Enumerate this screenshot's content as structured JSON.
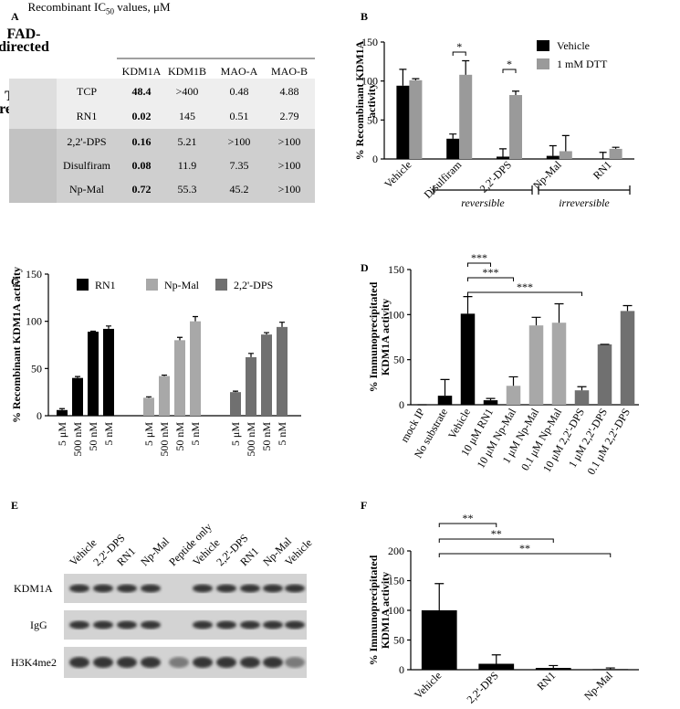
{
  "panel_labels": [
    "A",
    "B",
    "C",
    "D",
    "E",
    "F"
  ],
  "table": {
    "title": {
      "text": "Recombinant IC",
      "subscript": "50",
      "tail": " values, μM"
    },
    "columns": [
      "KDM1A",
      "KDM1B",
      "MAO-A",
      "MAO-B"
    ],
    "groups": [
      {
        "label": "FAD-directed",
        "rows": [
          {
            "name": "TCP",
            "values": [
              48.4,
              ">400",
              0.48,
              4.88
            ]
          },
          {
            "name": "RN1",
            "values": [
              0.02,
              145,
              0.51,
              2.79
            ]
          }
        ]
      },
      {
        "label": "Thiol-reactive",
        "rows": [
          {
            "name": "2,2'-DPS",
            "values": [
              0.16,
              5.21,
              ">100",
              ">100"
            ]
          },
          {
            "name": "Disulfiram",
            "values": [
              0.08,
              11.9,
              7.35,
              ">100"
            ]
          },
          {
            "name": "Np-Mal",
            "values": [
              0.72,
              55.3,
              45.2,
              ">100"
            ]
          }
        ]
      }
    ]
  },
  "blot": {
    "lanes": [
      "Vehicle",
      "2,2'-DPS",
      "RN1",
      "Np-Mal",
      "Peptide only",
      "Vehicle",
      "2,2'-DPS",
      "RN1",
      "Np-Mal",
      "Vehicle"
    ],
    "rows": [
      "KDM1A",
      "IgG",
      "H3K4me2"
    ]
  },
  "chart_data": [
    {
      "type": "bar",
      "ylabel": [
        "% Recombinant KDM1A",
        "activity"
      ],
      "categories": [
        "Vehicle",
        "Disulfiram",
        "2,2'-DPS",
        "Np-Mal",
        "RN1"
      ],
      "series": [
        {
          "name": "Vehicle",
          "color": "#000000",
          "values": [
            94,
            26,
            3,
            4,
            0.5
          ],
          "errors": [
            21,
            6,
            10,
            13,
            8
          ]
        },
        {
          "name": "1 mM DTT",
          "color": "#9a9a9a",
          "values": [
            101,
            108,
            82,
            10,
            13
          ],
          "errors": [
            2,
            18,
            5,
            20,
            2
          ]
        }
      ],
      "ylim": [
        0,
        150
      ],
      "yticks": [
        0,
        50,
        100,
        150
      ],
      "annotations": [
        "*",
        "*"
      ],
      "group_labels": [
        "reversible",
        "irreversible"
      ]
    },
    {
      "type": "bar",
      "ylabel": [
        "% Recombinant KDM1A activity"
      ],
      "categories": [
        "5 μM",
        "500 nM",
        "50 nM",
        "5 nM"
      ],
      "series": [
        {
          "name": "RN1",
          "color": "#000000",
          "values": [
            6,
            40,
            89,
            92
          ],
          "errors": [
            1.5,
            1.5,
            0.5,
            3
          ]
        },
        {
          "name": "Np-Mal",
          "color": "#a8a8a8",
          "values": [
            19,
            42,
            80,
            100
          ],
          "errors": [
            1,
            1,
            3,
            5
          ]
        },
        {
          "name": "2,2'-DPS",
          "color": "#707070",
          "values": [
            25,
            62,
            86,
            94
          ],
          "errors": [
            1,
            4,
            2,
            5
          ]
        }
      ],
      "ylim": [
        0,
        150
      ],
      "yticks": [
        0,
        50,
        100,
        150
      ]
    },
    {
      "type": "bar",
      "ylabel": [
        "% Immunoprecipitated",
        "KDM1A activity"
      ],
      "categories": [
        "mock IP",
        "No substrate",
        "Vehicle",
        "10 μM RN1",
        "10 μM Np-Mal",
        "1 μM Np-Mal",
        "0.1 μM Np-Mal",
        "10 μM 2,2'-DPS",
        "1 μM 2,2'-DPS",
        "0.1 μM 2,2'-DPS"
      ],
      "values": [
        0,
        10,
        101,
        5,
        21,
        88,
        91,
        16,
        67,
        104
      ],
      "errors": [
        0,
        18,
        19,
        2,
        10,
        9,
        21,
        4,
        0,
        6
      ],
      "colors": [
        "#000000",
        "#000000",
        "#000000",
        "#000000",
        "#a8a8a8",
        "#a8a8a8",
        "#a8a8a8",
        "#707070",
        "#707070",
        "#707070"
      ],
      "ylim": [
        0,
        150
      ],
      "yticks": [
        0,
        50,
        100,
        150
      ],
      "annotations": [
        "***",
        "***",
        "***"
      ]
    },
    {
      "type": "bar",
      "ylabel": [
        "% Immunoprecipitated",
        "KDM1A activity"
      ],
      "categories": [
        "Vehicle",
        "2,2'-DPS",
        "RN1",
        "Np-Mal"
      ],
      "values": [
        100,
        10,
        3,
        1
      ],
      "errors": [
        45,
        15,
        4,
        2
      ],
      "color": "#000000",
      "ylim": [
        0,
        200
      ],
      "yticks": [
        0,
        50,
        100,
        150,
        200
      ],
      "annotations": [
        "**",
        "**",
        "**"
      ]
    }
  ]
}
